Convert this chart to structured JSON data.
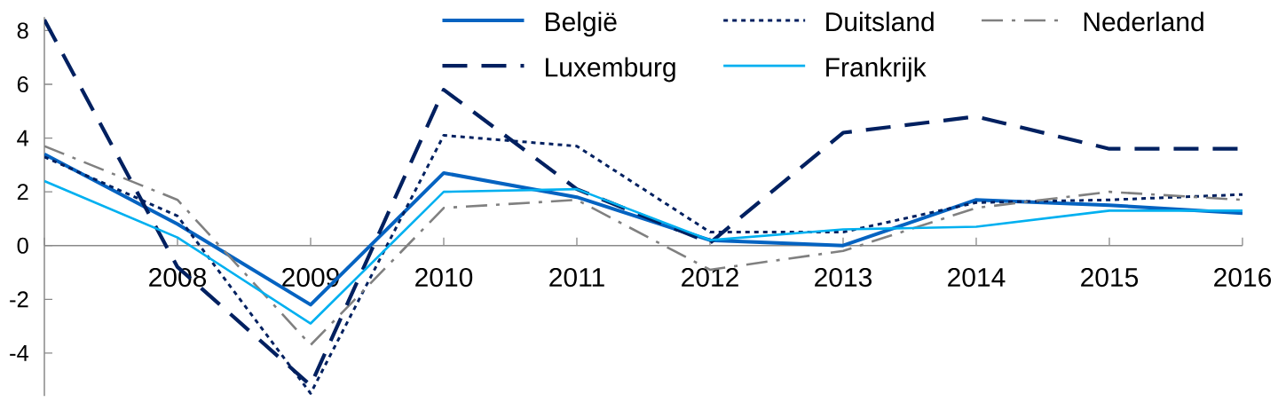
{
  "chart_data": {
    "type": "line",
    "categories": [
      null,
      "2008",
      "2009",
      "2010",
      "2011",
      "2012",
      "2013",
      "2014",
      "2015",
      "2016"
    ],
    "series": [
      {
        "name": "België",
        "color": "#0563c1",
        "line_style": "solid",
        "values": [
          3.4,
          0.8,
          -2.2,
          2.7,
          1.8,
          0.2,
          0.0,
          1.7,
          1.5,
          1.2
        ]
      },
      {
        "name": "Duitsland",
        "color": "#002060",
        "line_style": "dotted",
        "values": [
          3.3,
          1.1,
          -5.5,
          4.1,
          3.7,
          0.5,
          0.5,
          1.6,
          1.7,
          1.9
        ]
      },
      {
        "name": "Nederland",
        "color": "#808080",
        "line_style": "dashdot",
        "values": [
          3.7,
          1.7,
          -3.7,
          1.4,
          1.7,
          -0.9,
          -0.2,
          1.4,
          2.0,
          1.7
        ]
      },
      {
        "name": "Luxemburg",
        "color": "#002060",
        "line_style": "dashed",
        "values": [
          8.4,
          -0.8,
          -5.2,
          5.8,
          2.1,
          0.1,
          4.2,
          4.8,
          3.6,
          3.6
        ]
      },
      {
        "name": "Frankrijk",
        "color": "#00b0f0",
        "line_style": "solid",
        "values": [
          2.4,
          0.3,
          -2.9,
          2.0,
          2.1,
          0.2,
          0.6,
          0.7,
          1.3,
          1.3
        ]
      }
    ],
    "ylim": [
      -5.6,
      8.5
    ],
    "yticks": [
      -4,
      -2,
      0,
      2,
      4,
      6,
      8
    ],
    "legend": "top right"
  }
}
